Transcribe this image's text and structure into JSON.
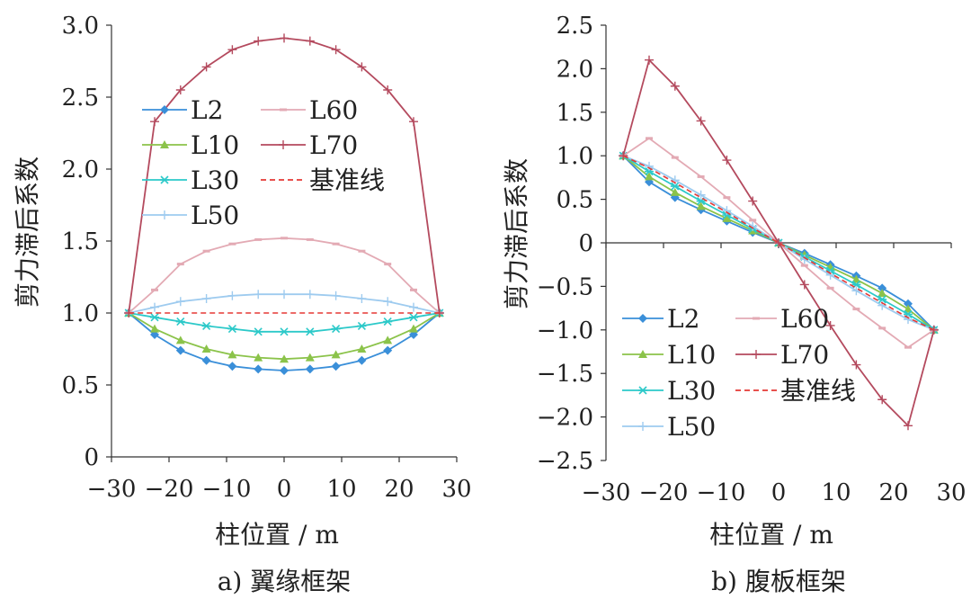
{
  "chart_data": [
    {
      "type": "line",
      "caption": "a)  翼缘框架",
      "ylabel": "剪力滞后系数",
      "xlabel": "柱位置 / m",
      "xlim": [
        -30,
        30
      ],
      "ylim": [
        0,
        3.0
      ],
      "xticks": [
        "−30",
        "−20",
        "−10",
        "0",
        "10",
        "20",
        "30"
      ],
      "xtick_values": [
        -30,
        -20,
        -10,
        0,
        10,
        20,
        30
      ],
      "yticks": [
        "0",
        "0.5",
        "1.0",
        "1.5",
        "2.0",
        "2.5",
        "3.0"
      ],
      "ytick_values": [
        0,
        0.5,
        1.0,
        1.5,
        2.0,
        2.5,
        3.0
      ],
      "x": [
        -27,
        -22.5,
        -18,
        -13.5,
        -9,
        -4.5,
        0,
        4.5,
        9,
        13.5,
        18,
        22.5,
        27
      ],
      "legend": {
        "left": [
          "L2",
          "L10",
          "L30",
          "L50"
        ],
        "right": [
          "L60",
          "L70",
          "基准线"
        ]
      },
      "series": [
        {
          "name": "L2",
          "color": "#3a8fd9",
          "marker": "diamond",
          "values": [
            1.0,
            0.85,
            0.74,
            0.67,
            0.63,
            0.61,
            0.6,
            0.61,
            0.63,
            0.67,
            0.74,
            0.85,
            1.0
          ]
        },
        {
          "name": "L10",
          "color": "#8bc34a",
          "marker": "triangle",
          "values": [
            1.0,
            0.89,
            0.81,
            0.75,
            0.71,
            0.69,
            0.68,
            0.69,
            0.71,
            0.75,
            0.81,
            0.89,
            1.0
          ]
        },
        {
          "name": "L30",
          "color": "#2cc9c9",
          "marker": "star",
          "values": [
            1.0,
            0.97,
            0.94,
            0.91,
            0.89,
            0.87,
            0.87,
            0.87,
            0.89,
            0.91,
            0.94,
            0.97,
            1.0
          ]
        },
        {
          "name": "L50",
          "color": "#9ecbef",
          "marker": "plus",
          "values": [
            1.0,
            1.04,
            1.08,
            1.1,
            1.12,
            1.13,
            1.13,
            1.13,
            1.12,
            1.1,
            1.08,
            1.04,
            1.0
          ]
        },
        {
          "name": "L60",
          "color": "#e3aab4",
          "marker": "dash",
          "values": [
            1.0,
            1.16,
            1.34,
            1.43,
            1.48,
            1.51,
            1.52,
            1.51,
            1.48,
            1.43,
            1.34,
            1.16,
            1.0
          ]
        },
        {
          "name": "L70",
          "color": "#b44a5e",
          "marker": "plus",
          "values": [
            1.0,
            2.33,
            2.55,
            2.71,
            2.83,
            2.89,
            2.91,
            2.89,
            2.83,
            2.71,
            2.55,
            2.33,
            1.0
          ]
        },
        {
          "name": "基准线",
          "color": "#e53935",
          "marker": "none",
          "dashed": true,
          "values": [
            1.0,
            1.0,
            1.0,
            1.0,
            1.0,
            1.0,
            1.0,
            1.0,
            1.0,
            1.0,
            1.0,
            1.0,
            1.0
          ]
        }
      ]
    },
    {
      "type": "line",
      "caption": "b)  腹板框架",
      "ylabel": "剪力滞后系数",
      "xlabel": "柱位置 / m",
      "xlim": [
        -30,
        30
      ],
      "ylim": [
        -2.5,
        2.5
      ],
      "xticks": [
        "−30",
        "−20",
        "−10",
        "0",
        "10",
        "20",
        "30"
      ],
      "xtick_values": [
        -30,
        -20,
        -10,
        0,
        10,
        20,
        30
      ],
      "yticks": [
        "−2.5",
        "−2.0",
        "−1.5",
        "−1.0",
        "−0.5",
        "0",
        "0.5",
        "1.0",
        "1.5",
        "2.0",
        "2.5"
      ],
      "ytick_values": [
        -2.5,
        -2.0,
        -1.5,
        -1.0,
        -0.5,
        0,
        0.5,
        1.0,
        1.5,
        2.0,
        2.5
      ],
      "x": [
        -27,
        -22.5,
        -18,
        -13.5,
        -9,
        -4.5,
        0,
        4.5,
        9,
        13.5,
        18,
        22.5,
        27
      ],
      "legend": {
        "left": [
          "L2",
          "L10",
          "L30",
          "L50"
        ],
        "right": [
          "L60",
          "L70",
          "基准线"
        ]
      },
      "series": [
        {
          "name": "L2",
          "color": "#3a8fd9",
          "marker": "diamond",
          "values": [
            1.0,
            0.7,
            0.52,
            0.38,
            0.25,
            0.12,
            0.0,
            -0.12,
            -0.25,
            -0.38,
            -0.52,
            -0.7,
            -1.0
          ]
        },
        {
          "name": "L10",
          "color": "#8bc34a",
          "marker": "triangle",
          "values": [
            1.0,
            0.76,
            0.58,
            0.42,
            0.28,
            0.14,
            0.0,
            -0.14,
            -0.28,
            -0.42,
            -0.58,
            -0.76,
            -1.0
          ]
        },
        {
          "name": "L30",
          "color": "#2cc9c9",
          "marker": "star",
          "values": [
            1.0,
            0.82,
            0.65,
            0.48,
            0.32,
            0.16,
            0.0,
            -0.16,
            -0.32,
            -0.48,
            -0.65,
            -0.82,
            -1.0
          ]
        },
        {
          "name": "L50",
          "color": "#9ecbef",
          "marker": "plus",
          "values": [
            1.0,
            0.88,
            0.72,
            0.55,
            0.37,
            0.19,
            0.0,
            -0.19,
            -0.37,
            -0.55,
            -0.72,
            -0.88,
            -1.0
          ]
        },
        {
          "name": "L60",
          "color": "#e3aab4",
          "marker": "dash",
          "values": [
            1.0,
            1.2,
            0.98,
            0.76,
            0.52,
            0.26,
            0.0,
            -0.26,
            -0.52,
            -0.76,
            -0.98,
            -1.2,
            -1.0
          ]
        },
        {
          "name": "L70",
          "color": "#b44a5e",
          "marker": "plus",
          "values": [
            1.0,
            2.1,
            1.8,
            1.4,
            0.95,
            0.48,
            0.0,
            -0.48,
            -0.95,
            -1.4,
            -1.8,
            -2.1,
            -1.0
          ]
        },
        {
          "name": "基准线",
          "color": "#e53935",
          "marker": "none",
          "dashed": true,
          "values": [
            1.0,
            0.86,
            0.69,
            0.52,
            0.35,
            0.17,
            0.0,
            -0.17,
            -0.35,
            -0.52,
            -0.69,
            -0.86,
            -1.0
          ]
        }
      ]
    }
  ]
}
